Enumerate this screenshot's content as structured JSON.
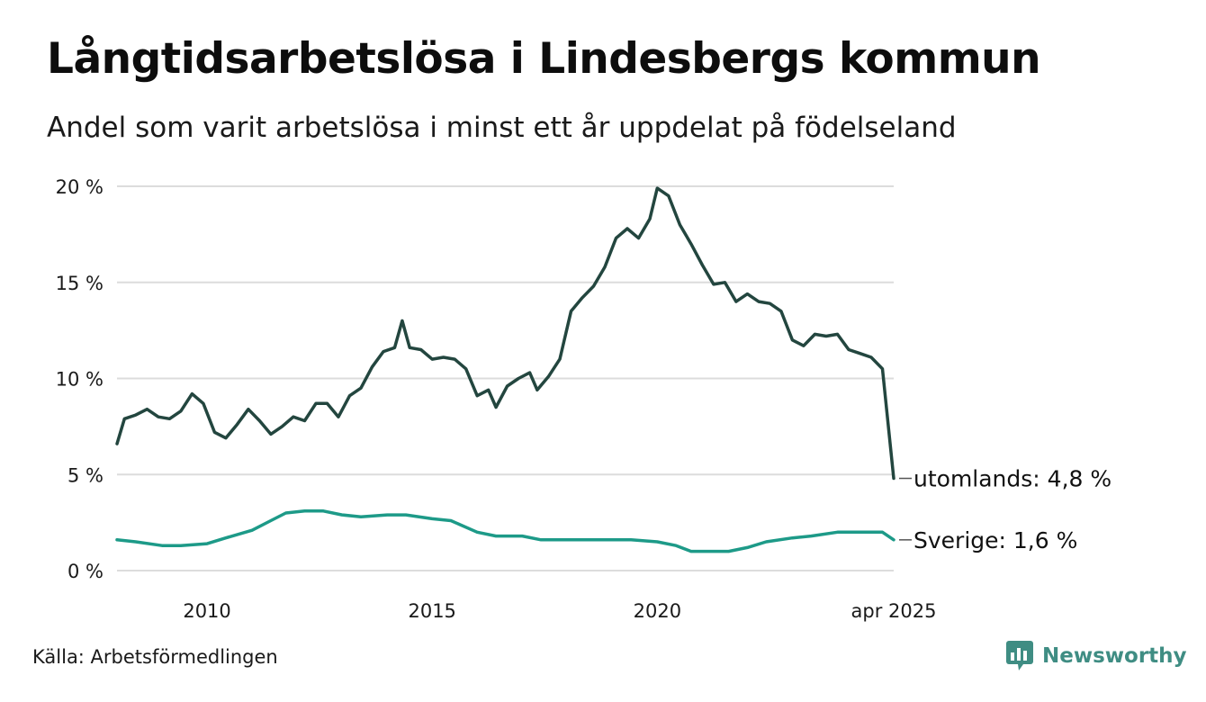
{
  "header": {
    "title": "Långtidsarbetslösa i Lindesbergs kommun",
    "subtitle": "Andel som varit arbetslösa i minst ett år uppdelat på födelseland"
  },
  "footer": {
    "source": "Källa: Arbetsförmedlingen",
    "brand": "Newsworthy",
    "brand_icon": "newsworthy-logo-icon",
    "brand_color": "#3f8d83"
  },
  "chart_data": {
    "type": "line",
    "title": "Långtidsarbetslösa i Lindesbergs kommun",
    "subtitle": "Andel som varit arbetslösa i minst ett år uppdelat på födelseland",
    "xlabel": "",
    "ylabel": "",
    "x_range": [
      "2008-01",
      "2025-04"
    ],
    "ylim": [
      0,
      20
    ],
    "y_ticks": [
      0,
      5,
      10,
      15,
      20
    ],
    "y_tick_labels": [
      "0 %",
      "5 %",
      "10 %",
      "15 %",
      "20 %"
    ],
    "x_ticks": [
      "2010-01",
      "2015-01",
      "2020-01",
      "2025-04"
    ],
    "x_tick_labels": [
      "2010",
      "2015",
      "2020",
      "apr 2025"
    ],
    "grid": "horizontal",
    "legend": "direct labels at line ends",
    "series": [
      {
        "name": "utomlands",
        "end_label": "utomlands: 4,8 %",
        "color": "#23463f",
        "points": [
          [
            "2008-01",
            6.6
          ],
          [
            "2008-03",
            7.9
          ],
          [
            "2008-06",
            8.1
          ],
          [
            "2008-09",
            8.4
          ],
          [
            "2008-12",
            8.0
          ],
          [
            "2009-03",
            7.9
          ],
          [
            "2009-06",
            8.3
          ],
          [
            "2009-09",
            9.2
          ],
          [
            "2009-12",
            8.7
          ],
          [
            "2010-03",
            7.2
          ],
          [
            "2010-06",
            6.9
          ],
          [
            "2010-09",
            7.6
          ],
          [
            "2010-12",
            8.4
          ],
          [
            "2011-03",
            7.8
          ],
          [
            "2011-06",
            7.1
          ],
          [
            "2011-09",
            7.5
          ],
          [
            "2011-12",
            8.0
          ],
          [
            "2012-03",
            7.8
          ],
          [
            "2012-06",
            8.7
          ],
          [
            "2012-09",
            8.7
          ],
          [
            "2012-12",
            8.0
          ],
          [
            "2013-03",
            9.1
          ],
          [
            "2013-06",
            9.5
          ],
          [
            "2013-09",
            10.6
          ],
          [
            "2013-12",
            11.4
          ],
          [
            "2014-03",
            11.6
          ],
          [
            "2014-05",
            13.0
          ],
          [
            "2014-07",
            11.6
          ],
          [
            "2014-10",
            11.5
          ],
          [
            "2015-01",
            11.0
          ],
          [
            "2015-04",
            11.1
          ],
          [
            "2015-07",
            11.0
          ],
          [
            "2015-10",
            10.5
          ],
          [
            "2016-01",
            9.1
          ],
          [
            "2016-04",
            9.4
          ],
          [
            "2016-06",
            8.5
          ],
          [
            "2016-09",
            9.6
          ],
          [
            "2016-12",
            10.0
          ],
          [
            "2017-03",
            10.3
          ],
          [
            "2017-05",
            9.4
          ],
          [
            "2017-08",
            10.1
          ],
          [
            "2017-11",
            11.0
          ],
          [
            "2018-02",
            13.5
          ],
          [
            "2018-05",
            14.2
          ],
          [
            "2018-08",
            14.8
          ],
          [
            "2018-11",
            15.8
          ],
          [
            "2019-02",
            17.3
          ],
          [
            "2019-05",
            17.8
          ],
          [
            "2019-08",
            17.3
          ],
          [
            "2019-11",
            18.3
          ],
          [
            "2020-01",
            19.9
          ],
          [
            "2020-04",
            19.5
          ],
          [
            "2020-07",
            18.0
          ],
          [
            "2020-10",
            17.0
          ],
          [
            "2021-01",
            15.9
          ],
          [
            "2021-04",
            14.9
          ],
          [
            "2021-07",
            15.0
          ],
          [
            "2021-10",
            14.0
          ],
          [
            "2022-01",
            14.4
          ],
          [
            "2022-04",
            14.0
          ],
          [
            "2022-07",
            13.9
          ],
          [
            "2022-10",
            13.5
          ],
          [
            "2023-01",
            12.0
          ],
          [
            "2023-04",
            11.7
          ],
          [
            "2023-07",
            12.3
          ],
          [
            "2023-10",
            12.2
          ],
          [
            "2024-01",
            12.3
          ],
          [
            "2024-04",
            11.5
          ],
          [
            "2024-07",
            11.3
          ],
          [
            "2024-10",
            11.1
          ],
          [
            "2025-01",
            10.5
          ],
          [
            "2025-04",
            4.8
          ]
        ]
      },
      {
        "name": "Sverige",
        "end_label": "Sverige: 1,6 %",
        "color": "#1d9a88",
        "points": [
          [
            "2008-01",
            1.6
          ],
          [
            "2008-06",
            1.5
          ],
          [
            "2009-01",
            1.3
          ],
          [
            "2009-06",
            1.3
          ],
          [
            "2010-01",
            1.4
          ],
          [
            "2010-06",
            1.7
          ],
          [
            "2011-01",
            2.1
          ],
          [
            "2011-06",
            2.6
          ],
          [
            "2011-10",
            3.0
          ],
          [
            "2012-03",
            3.1
          ],
          [
            "2012-08",
            3.1
          ],
          [
            "2013-01",
            2.9
          ],
          [
            "2013-06",
            2.8
          ],
          [
            "2014-01",
            2.9
          ],
          [
            "2014-06",
            2.9
          ],
          [
            "2015-01",
            2.7
          ],
          [
            "2015-06",
            2.6
          ],
          [
            "2016-01",
            2.0
          ],
          [
            "2016-06",
            1.8
          ],
          [
            "2017-01",
            1.8
          ],
          [
            "2017-06",
            1.6
          ],
          [
            "2018-01",
            1.6
          ],
          [
            "2018-06",
            1.6
          ],
          [
            "2019-01",
            1.6
          ],
          [
            "2019-06",
            1.6
          ],
          [
            "2020-01",
            1.5
          ],
          [
            "2020-06",
            1.3
          ],
          [
            "2020-10",
            1.0
          ],
          [
            "2021-03",
            1.0
          ],
          [
            "2021-08",
            1.0
          ],
          [
            "2022-01",
            1.2
          ],
          [
            "2022-06",
            1.5
          ],
          [
            "2023-01",
            1.7
          ],
          [
            "2023-06",
            1.8
          ],
          [
            "2024-01",
            2.0
          ],
          [
            "2024-06",
            2.0
          ],
          [
            "2025-01",
            2.0
          ],
          [
            "2025-04",
            1.6
          ]
        ]
      }
    ]
  }
}
